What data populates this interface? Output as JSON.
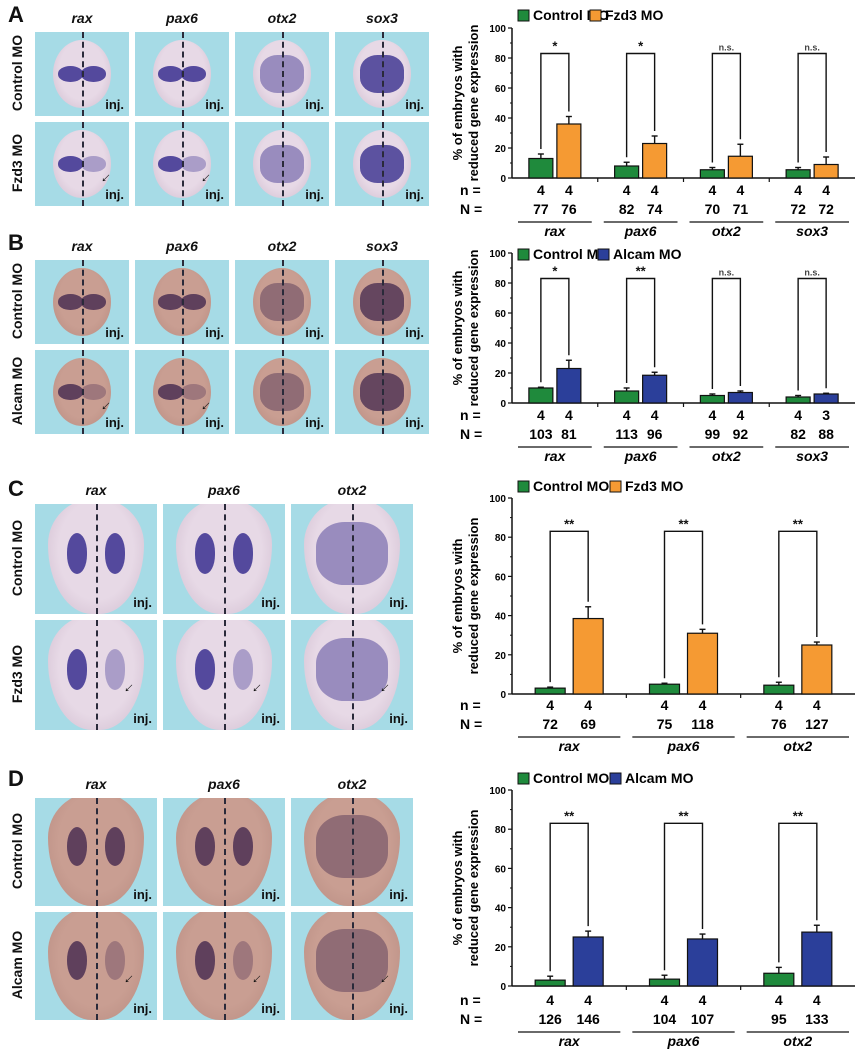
{
  "figure": {
    "panels": [
      {
        "letter": "A",
        "genes": [
          "rax",
          "pax6",
          "otx2",
          "sox3"
        ],
        "rows": [
          "Control MO",
          "Fzd3 MO"
        ],
        "inj_label": "inj.",
        "stage": "neurula",
        "stain": "purple"
      },
      {
        "letter": "B",
        "genes": [
          "rax",
          "pax6",
          "otx2",
          "sox3"
        ],
        "rows": [
          "Control MO",
          "Alcam MO"
        ],
        "inj_label": "inj.",
        "stage": "neurula",
        "stain": "brown"
      },
      {
        "letter": "C",
        "genes": [
          "rax",
          "pax6",
          "otx2"
        ],
        "rows": [
          "Control MO",
          "Fzd3 MO"
        ],
        "inj_label": "inj.",
        "stage": "tailbud",
        "stain": "purple"
      },
      {
        "letter": "D",
        "genes": [
          "rax",
          "pax6",
          "otx2"
        ],
        "rows": [
          "Control MO",
          "Alcam MO"
        ],
        "inj_label": "inj.",
        "stage": "tailbud",
        "stain": "brown"
      }
    ]
  },
  "colors": {
    "control": "#1f8a3c",
    "fzd3": "#f59a33",
    "alcam": "#2b3f9a",
    "tile_bg": "#a6dbe6"
  },
  "chart_data": [
    {
      "type": "bar",
      "panel": "A",
      "ylabel": "% of embryos with reduced gene expression",
      "ylim": [
        0,
        100
      ],
      "yticks": [
        0,
        20,
        40,
        60,
        80,
        100
      ],
      "categories": [
        "rax",
        "pax6",
        "otx2",
        "sox3"
      ],
      "legend": [
        "Control MO",
        "Fzd3 MO"
      ],
      "legend_position": "top",
      "series": [
        {
          "name": "Control MO",
          "color_key": "control",
          "values": [
            13,
            8,
            5.5,
            5.5
          ],
          "errors": [
            3,
            2.5,
            1.5,
            1.5
          ]
        },
        {
          "name": "Fzd3 MO",
          "color_key": "fzd3",
          "values": [
            36,
            23,
            14.5,
            9
          ],
          "errors": [
            5,
            5,
            8,
            5
          ]
        }
      ],
      "significance": [
        "*",
        "*",
        "n.s.",
        "n.s."
      ],
      "n_row_label": "n =",
      "N_row_label": "N =",
      "n": [
        [
          "4",
          "4"
        ],
        [
          "4",
          "4"
        ],
        [
          "4",
          "4"
        ],
        [
          "4",
          "4"
        ]
      ],
      "N": [
        [
          "77",
          "76"
        ],
        [
          "82",
          "74"
        ],
        [
          "70",
          "71"
        ],
        [
          "72",
          "72"
        ]
      ]
    },
    {
      "type": "bar",
      "panel": "B",
      "ylabel": "% of embryos with reduced gene expression",
      "ylim": [
        0,
        100
      ],
      "yticks": [
        0,
        20,
        40,
        60,
        80,
        100
      ],
      "categories": [
        "rax",
        "pax6",
        "otx2",
        "sox3"
      ],
      "legend": [
        "Control MO",
        "Alcam MO"
      ],
      "legend_position": "top",
      "series": [
        {
          "name": "Control MO",
          "color_key": "control",
          "values": [
            10,
            8,
            5,
            4
          ],
          "errors": [
            0.5,
            2,
            1,
            1
          ]
        },
        {
          "name": "Alcam MO",
          "color_key": "alcam",
          "values": [
            23,
            18.5,
            7,
            6
          ],
          "errors": [
            5.5,
            2,
            1,
            0.5
          ]
        }
      ],
      "significance": [
        "*",
        "**",
        "n.s.",
        "n.s."
      ],
      "n_row_label": "n =",
      "N_row_label": "N =",
      "n": [
        [
          "4",
          "4"
        ],
        [
          "4",
          "4"
        ],
        [
          "4",
          "4"
        ],
        [
          "4",
          "3"
        ]
      ],
      "N": [
        [
          "103",
          "81"
        ],
        [
          "113",
          "96"
        ],
        [
          "99",
          "92"
        ],
        [
          "82",
          "88"
        ]
      ]
    },
    {
      "type": "bar",
      "panel": "C",
      "ylabel": "% of embryos with reduced gene expression",
      "ylim": [
        0,
        100
      ],
      "yticks": [
        0,
        20,
        40,
        60,
        80,
        100
      ],
      "categories": [
        "rax",
        "pax6",
        "otx2"
      ],
      "legend": [
        "Control MO",
        "Fzd3 MO"
      ],
      "legend_position": "top",
      "series": [
        {
          "name": "Control MO",
          "color_key": "control",
          "values": [
            3,
            5,
            4.5
          ],
          "errors": [
            0.5,
            0.5,
            1.5
          ]
        },
        {
          "name": "Fzd3 MO",
          "color_key": "fzd3",
          "values": [
            38.5,
            31,
            25
          ],
          "errors": [
            6,
            2,
            1.5
          ]
        }
      ],
      "significance": [
        "**",
        "**",
        "**"
      ],
      "n_row_label": "n =",
      "N_row_label": "N =",
      "n": [
        [
          "4",
          "4"
        ],
        [
          "4",
          "4"
        ],
        [
          "4",
          "4"
        ]
      ],
      "N": [
        [
          "72",
          "69"
        ],
        [
          "75",
          "118"
        ],
        [
          "76",
          "127"
        ]
      ]
    },
    {
      "type": "bar",
      "panel": "D",
      "ylabel": "% of embryos with reduced gene expression",
      "ylim": [
        0,
        100
      ],
      "yticks": [
        0,
        20,
        40,
        60,
        80,
        100
      ],
      "categories": [
        "rax",
        "pax6",
        "otx2"
      ],
      "legend": [
        "Control MO",
        "Alcam MO"
      ],
      "legend_position": "top",
      "series": [
        {
          "name": "Control MO",
          "color_key": "control",
          "values": [
            3,
            3.5,
            6.5
          ],
          "errors": [
            2,
            2,
            3
          ]
        },
        {
          "name": "Alcam MO",
          "color_key": "alcam",
          "values": [
            25,
            24,
            27.5
          ],
          "errors": [
            3,
            2.5,
            3.5
          ]
        }
      ],
      "significance": [
        "**",
        "**",
        "**"
      ],
      "n_row_label": "n =",
      "N_row_label": "N =",
      "n": [
        [
          "4",
          "4"
        ],
        [
          "4",
          "4"
        ],
        [
          "4",
          "4"
        ]
      ],
      "N": [
        [
          "126",
          "146"
        ],
        [
          "104",
          "107"
        ],
        [
          "95",
          "133"
        ]
      ]
    }
  ]
}
